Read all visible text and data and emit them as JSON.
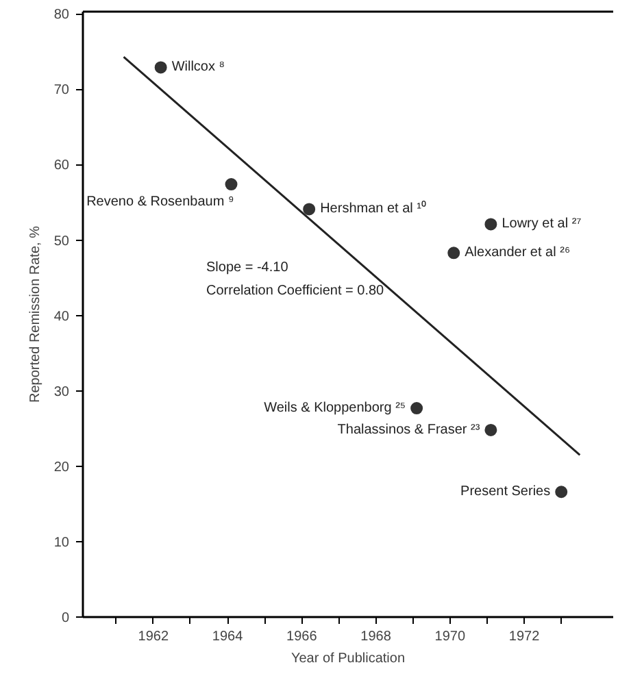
{
  "chart_data": {
    "type": "scatter",
    "xlabel": "Year of Publication",
    "ylabel": "Reported Remission Rate, %",
    "xlim": [
      1960.1,
      1974.4
    ],
    "ylim": [
      0,
      80.3
    ],
    "xticks": [
      {
        "value": 1961,
        "label": null
      },
      1962,
      {
        "value": 1963,
        "label": null
      },
      1964,
      {
        "value": 1965,
        "label": null
      },
      1966,
      {
        "value": 1967,
        "label": null
      },
      1968,
      {
        "value": 1969,
        "label": null
      },
      1970,
      {
        "value": 1971,
        "label": null
      },
      1972,
      {
        "value": 1973,
        "label": null
      }
    ],
    "yticks": [
      0,
      10,
      20,
      30,
      40,
      50,
      60,
      70,
      80
    ],
    "grid": false,
    "series": [
      {
        "marker": "circle",
        "color": "#333333",
        "x": [
          1962.2,
          1964.1,
          1966.2,
          1971.1,
          1970.1,
          1969.1,
          1971.1,
          1973.0
        ],
        "values": [
          72.9,
          57.4,
          54.1,
          52.1,
          48.3,
          27.7,
          24.8,
          16.6
        ]
      },
      {
        "type": "line",
        "color": "#222222",
        "x": [
          1961.2,
          1973.5
        ],
        "values": [
          74.3,
          21.5
        ]
      }
    ],
    "annotations": [
      {
        "text": "Willcox ⁸",
        "x": 1962.2,
        "y": 72.9
      },
      {
        "text": "Reveno & Rosenbaum ⁹",
        "x": 1964.1,
        "y": 57.4
      },
      {
        "text": "Hershman et al ¹⁰",
        "x": 1966.2,
        "y": 54.1
      },
      {
        "text": "Lowry et al ²⁷",
        "x": 1971.1,
        "y": 52.1
      },
      {
        "text": "Alexander et al ²⁶",
        "x": 1970.1,
        "y": 48.3
      },
      {
        "text": "Weils & Kloppenborg ²⁵",
        "x": 1969.1,
        "y": 27.7
      },
      {
        "text": "Thalassinos & Fraser ²³",
        "x": 1971.1,
        "y": 24.8
      },
      {
        "text": "Present Series",
        "x": 1973.0,
        "y": 16.6
      },
      "Slope = -4.10",
      "Correlation Coefficient = 0.80"
    ]
  }
}
